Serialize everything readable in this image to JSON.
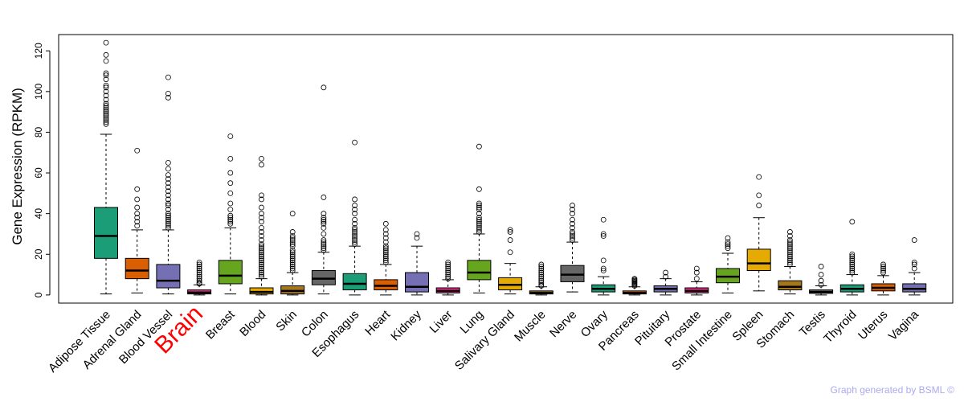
{
  "chart_data": {
    "type": "boxplot",
    "title": "",
    "xlabel": "",
    "ylabel": "Gene Expression (RPKM)",
    "ylim": [
      -4,
      128
    ],
    "yticks": [
      0,
      20,
      40,
      60,
      80,
      100,
      120
    ],
    "highlight": "Brain",
    "highlight_color": "#ff0000",
    "categories": [
      {
        "name": "Adipose Tissue",
        "color": "#1b9e77",
        "whisker_low": 0.5,
        "q1": 18,
        "median": 29,
        "q3": 43,
        "whisker_high": 79,
        "outliers": [
          84,
          85,
          86,
          87,
          88,
          89,
          90,
          91,
          92,
          93,
          94,
          96,
          98,
          100,
          102,
          103,
          106,
          108,
          109,
          115,
          118,
          124
        ]
      },
      {
        "name": "Adrenal Gland",
        "color": "#d95f02",
        "whisker_low": 1,
        "q1": 8,
        "median": 12,
        "q3": 18,
        "whisker_high": 32,
        "outliers": [
          34,
          36,
          38,
          40,
          43,
          47,
          52,
          71
        ]
      },
      {
        "name": "Blood Vessel",
        "color": "#7570b3",
        "whisker_low": 0.5,
        "q1": 3.5,
        "median": 7,
        "q3": 15,
        "whisker_high": 32,
        "outliers": [
          33,
          34,
          35,
          36,
          37,
          38,
          39,
          40,
          42,
          44,
          45,
          47,
          49,
          51,
          53,
          55,
          57,
          59,
          62,
          65,
          97,
          99,
          107
        ]
      },
      {
        "name": "Brain",
        "color": "#e7298a",
        "whisker_low": 0,
        "q1": 0.5,
        "median": 1.2,
        "q3": 2.5,
        "whisker_high": 5,
        "outliers": [
          5.5,
          6,
          7,
          8,
          9,
          10,
          11,
          12,
          13,
          14,
          15,
          16
        ]
      },
      {
        "name": "Breast",
        "color": "#66a61e",
        "whisker_low": 0.5,
        "q1": 5.5,
        "median": 9.5,
        "q3": 17,
        "whisker_high": 33,
        "outliers": [
          35,
          36,
          37,
          38,
          39,
          42,
          45,
          50,
          55,
          60,
          67,
          78
        ]
      },
      {
        "name": "Blood",
        "color": "#e6ab02",
        "whisker_low": 0,
        "q1": 0.5,
        "median": 1.5,
        "q3": 3.5,
        "whisker_high": 8,
        "outliers": [
          9,
          10,
          11,
          12,
          13,
          14,
          15,
          16,
          17,
          18,
          19,
          20,
          21,
          22,
          23,
          24,
          25,
          27,
          29,
          31,
          33,
          36,
          38,
          40,
          43,
          47,
          49,
          64,
          67
        ]
      },
      {
        "name": "Skin",
        "color": "#a6761d",
        "whisker_low": 0,
        "q1": 0.5,
        "median": 2,
        "q3": 4.5,
        "whisker_high": 11,
        "outliers": [
          12,
          13,
          14,
          15,
          16,
          17,
          18,
          19,
          20,
          21,
          22,
          24,
          25,
          26,
          27,
          28,
          29,
          31,
          40
        ]
      },
      {
        "name": "Colon",
        "color": "#666666",
        "whisker_low": 0.5,
        "q1": 5,
        "median": 8,
        "q3": 12,
        "whisker_high": 21,
        "outliers": [
          22,
          23,
          24,
          25,
          26,
          27,
          30,
          33,
          35,
          36,
          37,
          38,
          40,
          48,
          102
        ]
      },
      {
        "name": "Esophagus",
        "color": "#1b9e77",
        "whisker_low": 0,
        "q1": 2.5,
        "median": 5.5,
        "q3": 10.5,
        "whisker_high": 24,
        "outliers": [
          25,
          26,
          27,
          28,
          29,
          30,
          31,
          32,
          33,
          35,
          37,
          40,
          42,
          44,
          47,
          75
        ]
      },
      {
        "name": "Heart",
        "color": "#d95f02",
        "whisker_low": 0,
        "q1": 2.5,
        "median": 4.5,
        "q3": 7.5,
        "whisker_high": 15,
        "outliers": [
          16,
          17,
          18,
          19,
          20,
          21,
          22,
          23,
          24,
          26,
          28,
          30,
          32,
          35
        ]
      },
      {
        "name": "Kidney",
        "color": "#7570b3",
        "whisker_low": 0,
        "q1": 1.5,
        "median": 4,
        "q3": 11,
        "whisker_high": 24,
        "outliers": [
          28,
          30
        ]
      },
      {
        "name": "Liver",
        "color": "#e7298a",
        "whisker_low": 0,
        "q1": 1,
        "median": 2,
        "q3": 3.5,
        "whisker_high": 7.5,
        "outliers": [
          8,
          9,
          10,
          11,
          12,
          13,
          14,
          15,
          16
        ]
      },
      {
        "name": "Lung",
        "color": "#66a61e",
        "whisker_low": 1,
        "q1": 7.5,
        "median": 11,
        "q3": 17,
        "whisker_high": 30,
        "outliers": [
          31,
          32,
          33,
          34,
          35,
          36,
          37,
          38,
          40,
          42,
          43,
          44,
          45,
          52,
          73
        ]
      },
      {
        "name": "Salivary Gland",
        "color": "#e6ab02",
        "whisker_low": 0.5,
        "q1": 2.5,
        "median": 5,
        "q3": 8.5,
        "whisker_high": 15.5,
        "outliers": [
          21,
          27,
          31,
          32
        ]
      },
      {
        "name": "Muscle",
        "color": "#a6761d",
        "whisker_low": 0,
        "q1": 0.5,
        "median": 1,
        "q3": 2,
        "whisker_high": 4,
        "outliers": [
          4.5,
          5,
          6,
          7,
          8,
          9,
          10,
          11,
          12,
          13,
          14,
          15
        ]
      },
      {
        "name": "Nerve",
        "color": "#666666",
        "whisker_low": 1.5,
        "q1": 6.5,
        "median": 10,
        "q3": 14.5,
        "whisker_high": 26,
        "outliers": [
          27,
          28,
          29,
          30,
          31,
          33,
          35,
          37,
          40,
          42,
          44
        ]
      },
      {
        "name": "Ovary",
        "color": "#1b9e77",
        "whisker_low": 0,
        "q1": 1.5,
        "median": 3,
        "q3": 5,
        "whisker_high": 9,
        "outliers": [
          12,
          13,
          17,
          29,
          30,
          37
        ]
      },
      {
        "name": "Pancreas",
        "color": "#d95f02",
        "whisker_low": 0,
        "q1": 0.5,
        "median": 1,
        "q3": 2,
        "whisker_high": 4,
        "outliers": [
          4.5,
          5,
          5.5,
          6,
          6.5,
          7,
          7.5,
          8
        ]
      },
      {
        "name": "Pituitary",
        "color": "#7570b3",
        "whisker_low": 0,
        "q1": 1.5,
        "median": 3,
        "q3": 4.5,
        "whisker_high": 8,
        "outliers": [
          9,
          11
        ]
      },
      {
        "name": "Prostate",
        "color": "#e7298a",
        "whisker_low": 0,
        "q1": 1,
        "median": 2,
        "q3": 3.5,
        "whisker_high": 6.5,
        "outliers": [
          8,
          11,
          13
        ]
      },
      {
        "name": "Small Intestine",
        "color": "#66a61e",
        "whisker_low": 1,
        "q1": 6,
        "median": 9,
        "q3": 13,
        "whisker_high": 20.5,
        "outliers": [
          23,
          24,
          25,
          26,
          28
        ]
      },
      {
        "name": "Spleen",
        "color": "#e6ab02",
        "whisker_low": 2,
        "q1": 12,
        "median": 15.5,
        "q3": 22.5,
        "whisker_high": 38,
        "outliers": [
          44,
          49,
          58
        ]
      },
      {
        "name": "Stomach",
        "color": "#a6761d",
        "whisker_low": 0.5,
        "q1": 2.5,
        "median": 4,
        "q3": 7,
        "whisker_high": 14,
        "outliers": [
          15,
          16,
          17,
          18,
          19,
          20,
          21,
          22,
          23,
          24,
          25,
          26,
          27,
          29,
          31
        ]
      },
      {
        "name": "Testis",
        "color": "#666666",
        "whisker_low": 0,
        "q1": 0.8,
        "median": 1.5,
        "q3": 2.5,
        "whisker_high": 4.5,
        "outliers": [
          5,
          7,
          10,
          14
        ]
      },
      {
        "name": "Thyroid",
        "color": "#1b9e77",
        "whisker_low": 0,
        "q1": 1.5,
        "median": 3,
        "q3": 5,
        "whisker_high": 10,
        "outliers": [
          11,
          12,
          13,
          14,
          15,
          16,
          17,
          18,
          19,
          20,
          36
        ]
      },
      {
        "name": "Uterus",
        "color": "#d95f02",
        "whisker_low": 0,
        "q1": 2,
        "median": 3.5,
        "q3": 5.5,
        "whisker_high": 9.5,
        "outliers": [
          11,
          12,
          13,
          14,
          15
        ]
      },
      {
        "name": "Vagina",
        "color": "#7570b3",
        "whisker_low": 0,
        "q1": 1.5,
        "median": 3,
        "q3": 5.5,
        "whisker_high": 11,
        "outliers": [
          13,
          15,
          16,
          27
        ]
      }
    ]
  },
  "footer": {
    "credit": "Graph generated by BSML ©"
  }
}
